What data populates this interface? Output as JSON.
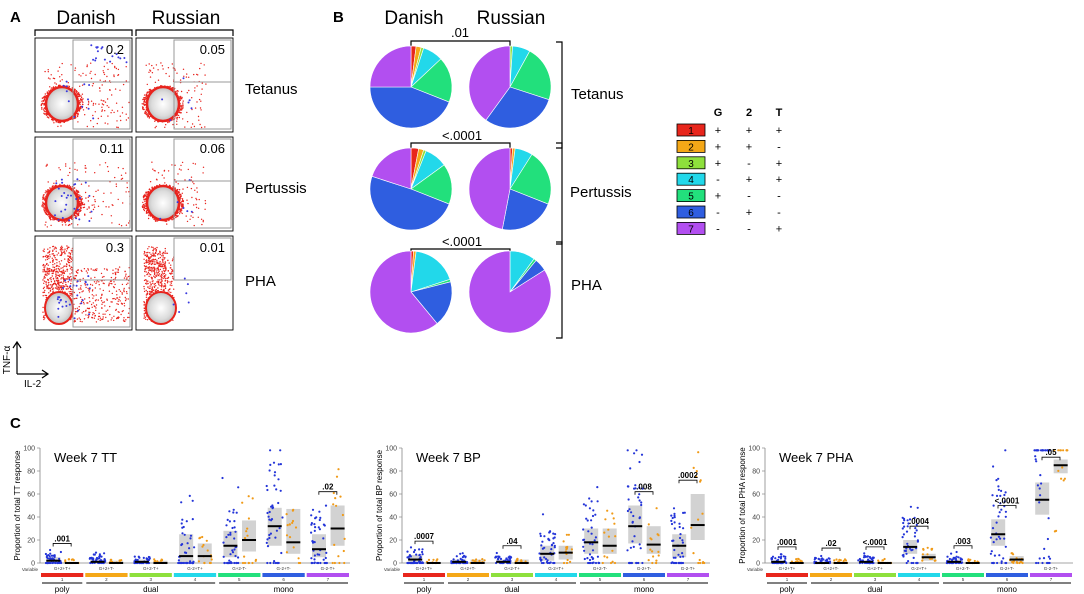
{
  "panels": {
    "a": "A",
    "b": "B",
    "c": "C"
  },
  "panel_a": {
    "col_headers": [
      "Danish",
      "Russian"
    ],
    "row_labels": [
      "Tetanus",
      "Pertussis",
      "PHA"
    ],
    "gate_values": [
      [
        "0.2",
        "0.05"
      ],
      [
        "0.11",
        "0.06"
      ],
      [
        "0.3",
        "0.01"
      ]
    ],
    "y_axis": "TNF-α",
    "x_axis": "IL-2"
  },
  "panel_b": {
    "col_headers": [
      "Danish",
      "Russian"
    ],
    "row_labels": [
      "Tetanus",
      "Pertussis",
      "PHA"
    ],
    "pvalues": [
      ".01",
      "<.0001",
      "<.0001"
    ],
    "legend_header": [
      "G",
      "2",
      "T"
    ],
    "legend": [
      {
        "id": "1",
        "color": "#e8261c",
        "signs": [
          "+",
          "+",
          "+"
        ]
      },
      {
        "id": "2",
        "color": "#f5a817",
        "signs": [
          "+",
          "+",
          "-"
        ]
      },
      {
        "id": "3",
        "color": "#8ee03c",
        "signs": [
          "+",
          "-",
          "+"
        ]
      },
      {
        "id": "4",
        "color": "#22d8ea",
        "signs": [
          "-",
          "+",
          "+"
        ]
      },
      {
        "id": "5",
        "color": "#22e07c",
        "signs": [
          "+",
          "-",
          "-"
        ]
      },
      {
        "id": "6",
        "color": "#2f5ee0",
        "signs": [
          "-",
          "+",
          "-"
        ]
      },
      {
        "id": "7",
        "color": "#b24ff0",
        "signs": [
          "-",
          "-",
          "+"
        ]
      }
    ]
  },
  "chart_data": [
    {
      "type": "pie",
      "title": "Tetanus Danish",
      "labels": [
        "1",
        "2",
        "3",
        "4",
        "5",
        "6",
        "7"
      ],
      "values": [
        2,
        2,
        1,
        8,
        18,
        44,
        25
      ]
    },
    {
      "type": "pie",
      "title": "Tetanus Russian",
      "labels": [
        "1",
        "2",
        "3",
        "4",
        "5",
        "6",
        "7"
      ],
      "values": [
        0,
        0,
        1,
        7,
        22,
        30,
        40
      ]
    },
    {
      "type": "pie",
      "title": "Pertussis Danish",
      "labels": [
        "1",
        "2",
        "3",
        "4",
        "5",
        "6",
        "7"
      ],
      "values": [
        3,
        2,
        1,
        9,
        16,
        49,
        20
      ]
    },
    {
      "type": "pie",
      "title": "Pertussis Russian",
      "labels": [
        "1",
        "2",
        "3",
        "4",
        "5",
        "6",
        "7"
      ],
      "values": [
        1,
        1,
        0,
        7,
        22,
        22,
        47
      ]
    },
    {
      "type": "pie",
      "title": "PHA Danish",
      "labels": [
        "1",
        "2",
        "3",
        "4",
        "5",
        "6",
        "7"
      ],
      "values": [
        1,
        1,
        0,
        18,
        1,
        18,
        61
      ]
    },
    {
      "type": "pie",
      "title": "PHA Russian",
      "labels": [
        "1",
        "2",
        "3",
        "4",
        "5",
        "6",
        "7"
      ],
      "values": [
        0,
        0,
        0,
        10,
        1,
        5,
        84
      ]
    },
    {
      "type": "scatter",
      "title": "Week 7 TT",
      "ylabel": "Proportion of total TT response",
      "ylim": [
        0,
        100
      ],
      "yticks": [
        "0",
        "20",
        "40",
        "60",
        "80",
        "100"
      ],
      "categories": [
        "G+2+T+",
        "G+2+T-",
        "G+2-T+",
        "G-2+T+",
        "G+2-T-",
        "G-2+T-",
        "G-2-T+"
      ],
      "medians_danish": [
        2,
        1,
        1,
        6,
        15,
        32,
        12
      ],
      "medians_russian": [
        0,
        0,
        0,
        6,
        20,
        18,
        30
      ],
      "box_danish": [
        [
          0,
          5
        ],
        [
          0,
          3
        ],
        [
          0,
          3
        ],
        [
          0,
          25
        ],
        [
          5,
          28
        ],
        [
          15,
          48
        ],
        [
          5,
          25
        ]
      ],
      "box_russian": [
        [
          0,
          1
        ],
        [
          0,
          2
        ],
        [
          0,
          2
        ],
        [
          0,
          17
        ],
        [
          10,
          37
        ],
        [
          8,
          47
        ],
        [
          15,
          50
        ]
      ],
      "pvalues": [
        {
          "cat": 0,
          "text": ".001"
        },
        {
          "cat": 6,
          "text": ".02"
        }
      ]
    },
    {
      "type": "scatter",
      "title": "Week 7 BP",
      "ylabel": "Proportion of total BP response",
      "ylim": [
        0,
        100
      ],
      "yticks": [
        "0",
        "20",
        "40",
        "60",
        "80",
        "100"
      ],
      "categories": [
        "G+2+T+",
        "G+2+T-",
        "G+2-T+",
        "G-2+T+",
        "G+2-T-",
        "G-2+T-",
        "G-2-T+"
      ],
      "medians_danish": [
        3,
        1,
        1,
        8,
        18,
        32,
        15
      ],
      "medians_russian": [
        0,
        0,
        0,
        9,
        15,
        16,
        33
      ],
      "box_danish": [
        [
          0,
          7
        ],
        [
          0,
          3
        ],
        [
          0,
          3
        ],
        [
          2,
          15
        ],
        [
          8,
          30
        ],
        [
          17,
          50
        ],
        [
          5,
          25
        ]
      ],
      "box_russian": [
        [
          0,
          1
        ],
        [
          0,
          3
        ],
        [
          0,
          3
        ],
        [
          3,
          15
        ],
        [
          8,
          30
        ],
        [
          8,
          32
        ],
        [
          20,
          60
        ]
      ],
      "pvalues": [
        {
          "cat": 0,
          "text": ".0007"
        },
        {
          "cat": 2,
          "text": ".04"
        },
        {
          "cat": 5,
          "text": ".008"
        },
        {
          "cat": 6,
          "text": ".0002"
        }
      ]
    },
    {
      "type": "scatter",
      "title": "Week 7 PHA",
      "ylabel": "Proportion of total PHA response",
      "ylim": [
        0,
        100
      ],
      "yticks": [
        "0",
        "20",
        "40",
        "60",
        "80",
        "100"
      ],
      "categories": [
        "G+2+T+",
        "G+2+T-",
        "G+2-T+",
        "G-2+T+",
        "G+2-T-",
        "G-2+T-",
        "G-2-T+"
      ],
      "medians_danish": [
        1,
        0,
        1,
        14,
        1,
        25,
        55
      ],
      "medians_russian": [
        0,
        0,
        0,
        5,
        0,
        3,
        85
      ],
      "box_danish": [
        [
          0,
          2
        ],
        [
          0,
          1
        ],
        [
          0,
          2
        ],
        [
          8,
          20
        ],
        [
          0,
          3
        ],
        [
          15,
          38
        ],
        [
          42,
          70
        ]
      ],
      "box_russian": [
        [
          0,
          1
        ],
        [
          0,
          1
        ],
        [
          0,
          1
        ],
        [
          2,
          8
        ],
        [
          0,
          1
        ],
        [
          1,
          6
        ],
        [
          78,
          90
        ]
      ],
      "pvalues": [
        {
          "cat": 0,
          "text": ".0001"
        },
        {
          "cat": 1,
          "text": ".02"
        },
        {
          "cat": 2,
          "text": "<.0001"
        },
        {
          "cat": 3,
          "text": ".0004"
        },
        {
          "cat": 4,
          "text": ".003"
        },
        {
          "cat": 5,
          "text": "<.0001"
        },
        {
          "cat": 6,
          "text": ".05"
        }
      ]
    }
  ],
  "panel_c": {
    "variable_label": "Variable",
    "group_labels": [
      "poly",
      "dual",
      "mono"
    ],
    "bar_numbers": [
      "1",
      "2",
      "3",
      "4",
      "5",
      "6",
      "7"
    ]
  }
}
